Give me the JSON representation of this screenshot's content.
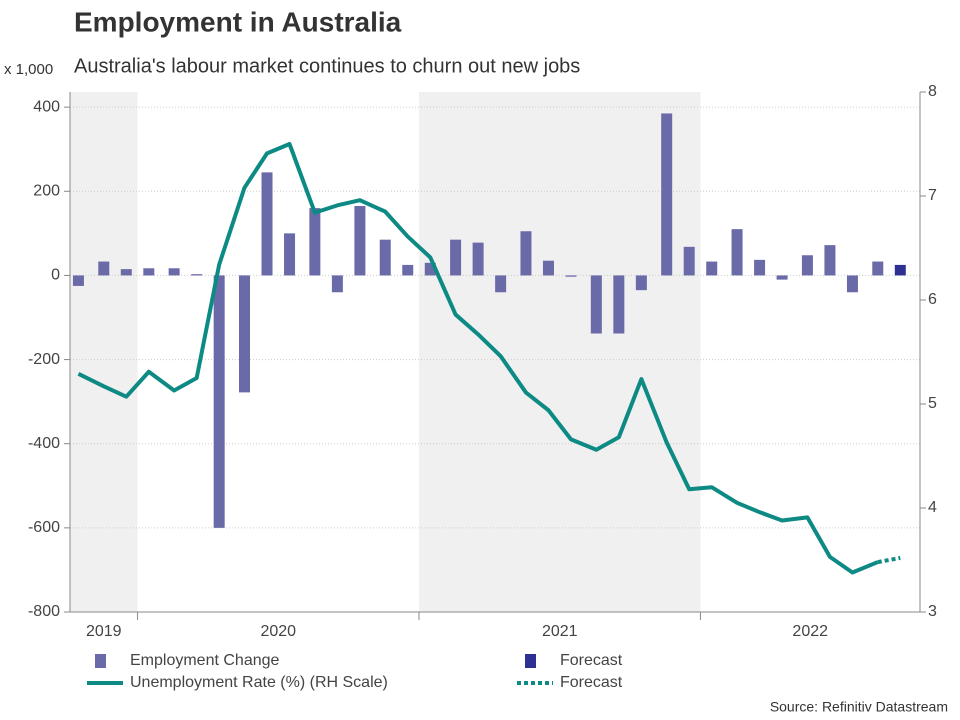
{
  "chart_data": {
    "type": "bar-line",
    "title": "Employment in Australia",
    "subtitle": "Australia's labour market continues to churn out new jobs",
    "y_unit_label": "x 1,000",
    "source": "Source: Refinitiv Datastream",
    "x": [
      2019.79,
      2019.88,
      2019.96,
      2020.04,
      2020.13,
      2020.21,
      2020.29,
      2020.38,
      2020.46,
      2020.54,
      2020.63,
      2020.71,
      2020.79,
      2020.88,
      2020.96,
      2021.04,
      2021.13,
      2021.21,
      2021.29,
      2021.38,
      2021.46,
      2021.54,
      2021.63,
      2021.71,
      2021.79,
      2021.88,
      2021.96,
      2022.04,
      2022.13,
      2022.21,
      2022.29,
      2022.38,
      2022.46,
      2022.54,
      2022.63,
      2022.71
    ],
    "xlim": [
      2019.76,
      2022.78
    ],
    "xticks": [
      {
        "value": 2019.88,
        "label": "2019"
      },
      {
        "value": 2020.5,
        "label": "2020"
      },
      {
        "value": 2021.5,
        "label": "2021"
      },
      {
        "value": 2022.39,
        "label": "2022"
      }
    ],
    "shading": [
      [
        2019,
        2020
      ],
      [
        2021,
        2022
      ]
    ],
    "ylim": [
      -800,
      436
    ],
    "yticks": [
      -800,
      -600,
      -400,
      -200,
      0,
      200,
      400
    ],
    "y2lim": [
      3,
      8
    ],
    "y2ticks": [
      3,
      4,
      5,
      6,
      7,
      8
    ],
    "grid": true,
    "series": [
      {
        "name": "Employment Change",
        "kind": "bar",
        "color": "#6b6aa8",
        "values": [
          -25,
          33,
          15,
          17,
          17,
          3,
          -600,
          -278,
          245,
          100,
          160,
          -40,
          165,
          85,
          25,
          30,
          85,
          78,
          -40,
          105,
          35,
          -3,
          -138,
          -138,
          -35,
          385,
          68,
          33,
          110,
          37,
          -10,
          48,
          72,
          -40,
          33,
          null
        ]
      },
      {
        "name": "Forecast",
        "kind": "bar",
        "color": "#2e3192",
        "values": [
          null,
          null,
          null,
          null,
          null,
          null,
          null,
          null,
          null,
          null,
          null,
          null,
          null,
          null,
          null,
          null,
          null,
          null,
          null,
          null,
          null,
          null,
          null,
          null,
          null,
          null,
          null,
          null,
          null,
          null,
          null,
          null,
          null,
          null,
          null,
          25
        ]
      },
      {
        "name": "Unemployment Rate (%) (RH Scale)",
        "kind": "line",
        "axis": "y2",
        "color": "#0e8a84",
        "values": [
          5.29,
          5.17,
          5.07,
          5.31,
          5.13,
          5.25,
          6.34,
          7.08,
          7.41,
          7.5,
          6.84,
          6.91,
          6.96,
          6.85,
          6.61,
          6.41,
          5.86,
          5.67,
          5.46,
          5.11,
          4.94,
          4.66,
          4.56,
          4.68,
          5.24,
          4.63,
          4.18,
          4.2,
          4.05,
          3.96,
          3.88,
          3.91,
          3.53,
          3.38,
          3.48,
          null
        ]
      },
      {
        "name": "Forecast",
        "kind": "line",
        "dashed": true,
        "axis": "y2",
        "color": "#0e8a84",
        "values": [
          null,
          null,
          null,
          null,
          null,
          null,
          null,
          null,
          null,
          null,
          null,
          null,
          null,
          null,
          null,
          null,
          null,
          null,
          null,
          null,
          null,
          null,
          null,
          null,
          null,
          null,
          null,
          null,
          null,
          null,
          null,
          null,
          null,
          null,
          3.48,
          3.52
        ]
      }
    ]
  }
}
